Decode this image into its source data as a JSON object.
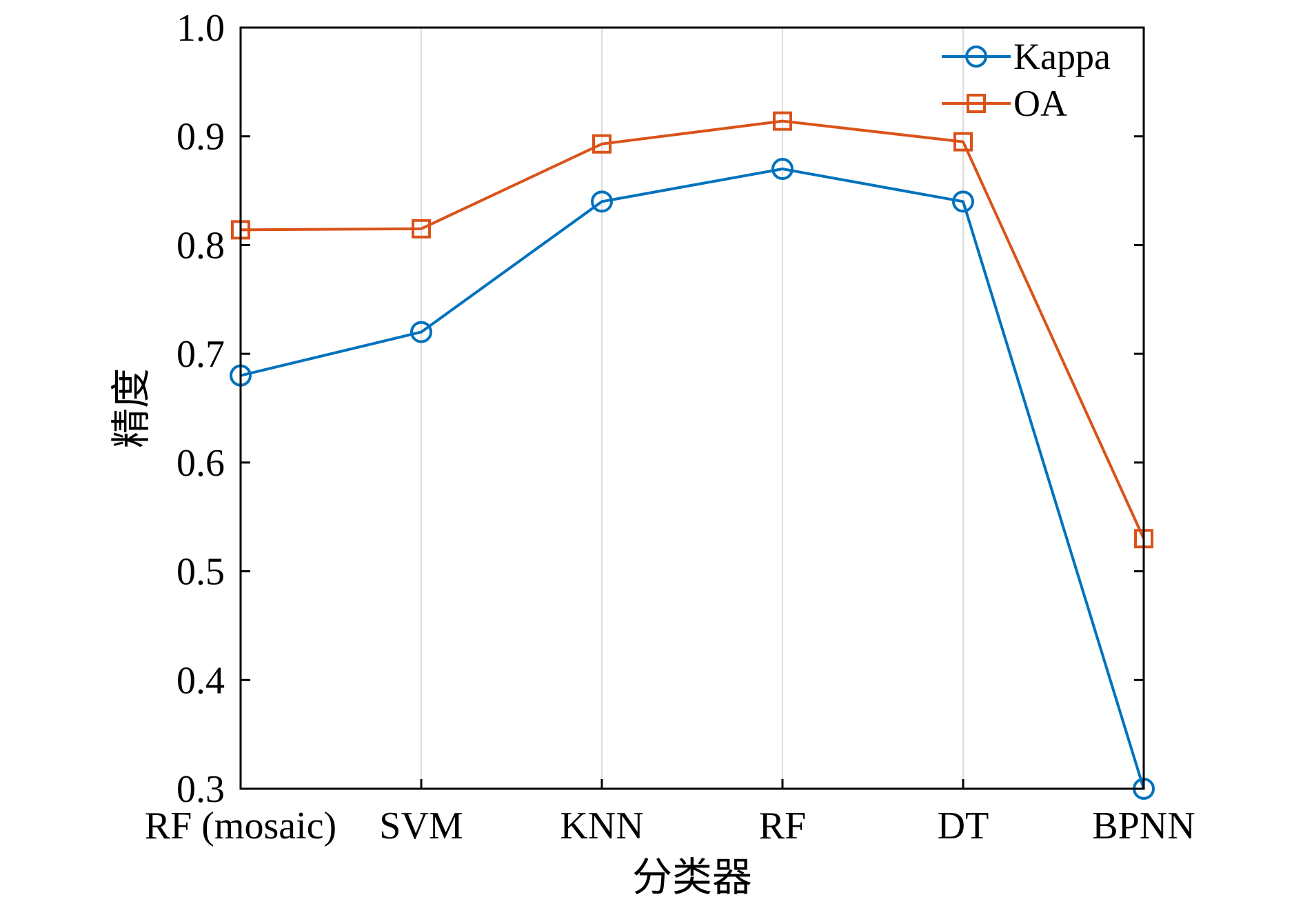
{
  "chart_data": {
    "type": "line",
    "title": "",
    "xlabel": "分类器",
    "ylabel": "精度",
    "categories": [
      "RF (mosaic)",
      "SVM",
      "KNN",
      "RF",
      "DT",
      "BPNN"
    ],
    "ylim": [
      0.3,
      1.0
    ],
    "yticks": [
      "0.3",
      "0.4",
      "0.5",
      "0.6",
      "0.7",
      "0.8",
      "0.9",
      "1.0"
    ],
    "grid": "vertical",
    "legend_position": "top-right",
    "series": [
      {
        "name": "Kappa",
        "marker": "circle",
        "color": "#0072BD",
        "values": [
          0.68,
          0.72,
          0.84,
          0.87,
          0.84,
          0.3
        ]
      },
      {
        "name": "OA",
        "marker": "square",
        "color": "#D95319",
        "values": [
          0.814,
          0.815,
          0.893,
          0.914,
          0.895,
          0.53
        ]
      }
    ]
  }
}
